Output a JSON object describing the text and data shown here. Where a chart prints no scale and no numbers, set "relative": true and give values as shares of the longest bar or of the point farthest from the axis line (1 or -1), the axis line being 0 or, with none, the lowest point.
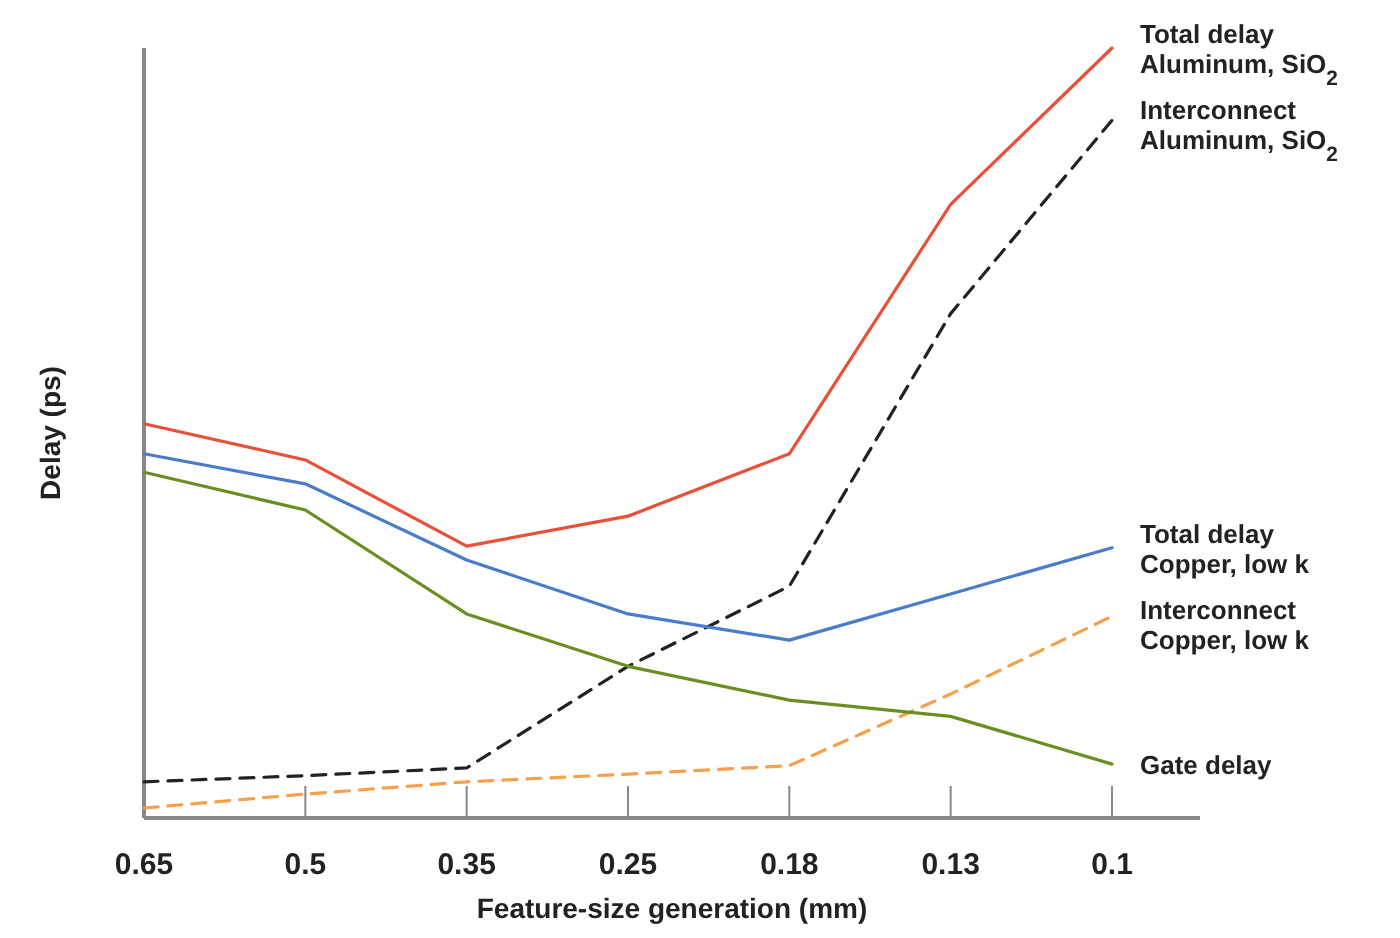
{
  "chart_data": {
    "type": "line",
    "xlabel": "Feature-size generation (mm)",
    "ylabel": "Delay (ps)",
    "relative": true,
    "categories": [
      "0.65",
      "0.5",
      "0.35",
      "0.25",
      "0.18",
      "0.13",
      "0.1"
    ],
    "marker": "none",
    "series": [
      {
        "name": "Total delay\nAluminum, SiO$_{2}$",
        "color": "#e8503a",
        "line_style": "solid",
        "values": [
          0.512,
          0.465,
          0.353,
          0.392,
          0.473,
          0.797,
          1
        ]
      },
      {
        "name": "Interconnect\nAluminum, SiO$_{2}$",
        "color": "#222222",
        "line_style": "dashed",
        "values": [
          0.047,
          0.055,
          0.065,
          0.197,
          0.301,
          0.655,
          0.906
        ]
      },
      {
        "name": "Total delay\nCopper, low k",
        "color": "#4a7cc9",
        "line_style": "solid",
        "values": [
          0.473,
          0.434,
          0.335,
          0.265,
          0.231,
          0.291,
          0.351
        ]
      },
      {
        "name": "Interconnect\nCopper, low k",
        "color": "#f5a04a",
        "line_style": "dashed",
        "values": [
          0.013,
          0.031,
          0.047,
          0.057,
          0.068,
          0.161,
          0.262
        ]
      },
      {
        "name": "Gate delay",
        "color": "#6b8e23",
        "line_style": "solid",
        "values": [
          0.449,
          0.4,
          0.265,
          0.197,
          0.153,
          0.132,
          0.07
        ]
      }
    ]
  }
}
